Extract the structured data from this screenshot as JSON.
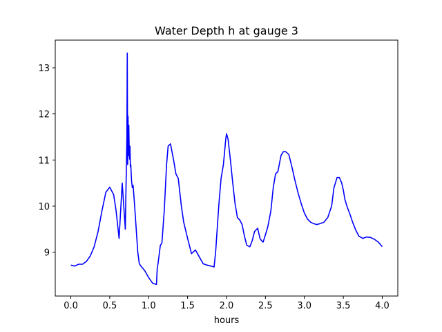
{
  "chart_data": {
    "type": "line",
    "title": "Water Depth h at gauge 3",
    "xlabel": "hours",
    "ylabel": "",
    "xlim": [
      -0.2,
      4.2
    ],
    "ylim": [
      8.05,
      13.6
    ],
    "xticks": [
      0.0,
      0.5,
      1.0,
      1.5,
      2.0,
      2.5,
      3.0,
      3.5,
      4.0
    ],
    "xtick_labels": [
      "0.0",
      "0.5",
      "1.0",
      "1.5",
      "2.0",
      "2.5",
      "3.0",
      "3.5",
      "4.0"
    ],
    "yticks": [
      9,
      10,
      11,
      12,
      13
    ],
    "ytick_labels": [
      "9",
      "10",
      "11",
      "12",
      "13"
    ],
    "grid": false,
    "series": [
      {
        "color": "#0000ff",
        "x": [
          0.0,
          0.05,
          0.1,
          0.15,
          0.2,
          0.25,
          0.3,
          0.35,
          0.4,
          0.45,
          0.5,
          0.55,
          0.58,
          0.62,
          0.66,
          0.7,
          0.72,
          0.725,
          0.73,
          0.735,
          0.74,
          0.745,
          0.75,
          0.755,
          0.76,
          0.765,
          0.77,
          0.78,
          0.79,
          0.8,
          0.82,
          0.84,
          0.86,
          0.88,
          0.9,
          0.95,
          1.0,
          1.05,
          1.1,
          1.11,
          1.115,
          1.12,
          1.15,
          1.17,
          1.2,
          1.23,
          1.25,
          1.28,
          1.32,
          1.35,
          1.38,
          1.42,
          1.45,
          1.5,
          1.55,
          1.6,
          1.65,
          1.7,
          1.75,
          1.8,
          1.84,
          1.86,
          1.9,
          1.93,
          1.96,
          1.99,
          2.0,
          2.02,
          2.05,
          2.08,
          2.11,
          2.14,
          2.17,
          2.2,
          2.23,
          2.26,
          2.3,
          2.33,
          2.36,
          2.4,
          2.43,
          2.45,
          2.47,
          2.5,
          2.53,
          2.57,
          2.6,
          2.63,
          2.66,
          2.7,
          2.73,
          2.76,
          2.8,
          2.84,
          2.88,
          2.92,
          2.96,
          3.0,
          3.04,
          3.08,
          3.12,
          3.16,
          3.2,
          3.25,
          3.3,
          3.35,
          3.38,
          3.42,
          3.45,
          3.48,
          3.5,
          3.52,
          3.55,
          3.58,
          3.62,
          3.66,
          3.7,
          3.75,
          3.8,
          3.85,
          3.9,
          3.95,
          4.0
        ],
        "y": [
          8.72,
          8.7,
          8.74,
          8.74,
          8.8,
          8.92,
          9.12,
          9.45,
          9.9,
          10.3,
          10.41,
          10.25,
          9.92,
          9.3,
          10.5,
          9.5,
          11.5,
          13.32,
          10.9,
          11.95,
          11.1,
          11.75,
          11.2,
          11.02,
          11.3,
          10.85,
          10.9,
          10.55,
          10.4,
          10.45,
          10.0,
          9.5,
          9.0,
          8.75,
          8.7,
          8.6,
          8.45,
          8.33,
          8.3,
          8.65,
          8.7,
          8.75,
          9.15,
          9.2,
          9.9,
          10.9,
          11.3,
          11.35,
          11.0,
          10.7,
          10.6,
          10.0,
          9.65,
          9.3,
          8.97,
          9.05,
          8.9,
          8.75,
          8.72,
          8.7,
          8.68,
          9.0,
          10.0,
          10.6,
          10.9,
          11.45,
          11.57,
          11.45,
          11.0,
          10.5,
          10.05,
          9.75,
          9.7,
          9.6,
          9.35,
          9.15,
          9.12,
          9.25,
          9.45,
          9.52,
          9.3,
          9.25,
          9.22,
          9.38,
          9.55,
          9.9,
          10.4,
          10.7,
          10.75,
          11.1,
          11.18,
          11.18,
          11.12,
          10.85,
          10.55,
          10.28,
          10.05,
          9.85,
          9.72,
          9.65,
          9.62,
          9.6,
          9.62,
          9.65,
          9.75,
          10.0,
          10.4,
          10.62,
          10.62,
          10.5,
          10.35,
          10.15,
          9.98,
          9.85,
          9.65,
          9.48,
          9.35,
          9.3,
          9.33,
          9.32,
          9.28,
          9.22,
          9.12
        ]
      }
    ]
  }
}
